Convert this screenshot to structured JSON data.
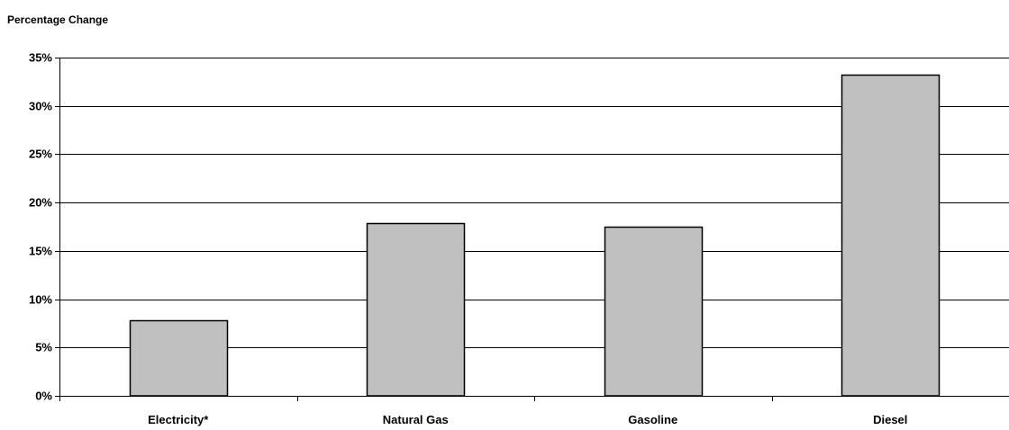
{
  "chart_data": {
    "type": "bar",
    "title": "",
    "xlabel": "",
    "ylabel": "Percentage Change",
    "categories": [
      "Electricity*",
      "Natural Gas",
      "Gasoline",
      "Diesel"
    ],
    "values": [
      7.8,
      17.9,
      17.5,
      33.2
    ],
    "ylim": [
      0,
      35
    ],
    "yticks": [
      0,
      5,
      10,
      15,
      20,
      25,
      30,
      35
    ],
    "ytick_labels": [
      "0%",
      "5%",
      "10%",
      "15%",
      "20%",
      "25%",
      "30%",
      "35%"
    ],
    "grid": true,
    "legend": "none",
    "bar_color": "#c0c0c0",
    "bar_edge_color": "#000000"
  }
}
